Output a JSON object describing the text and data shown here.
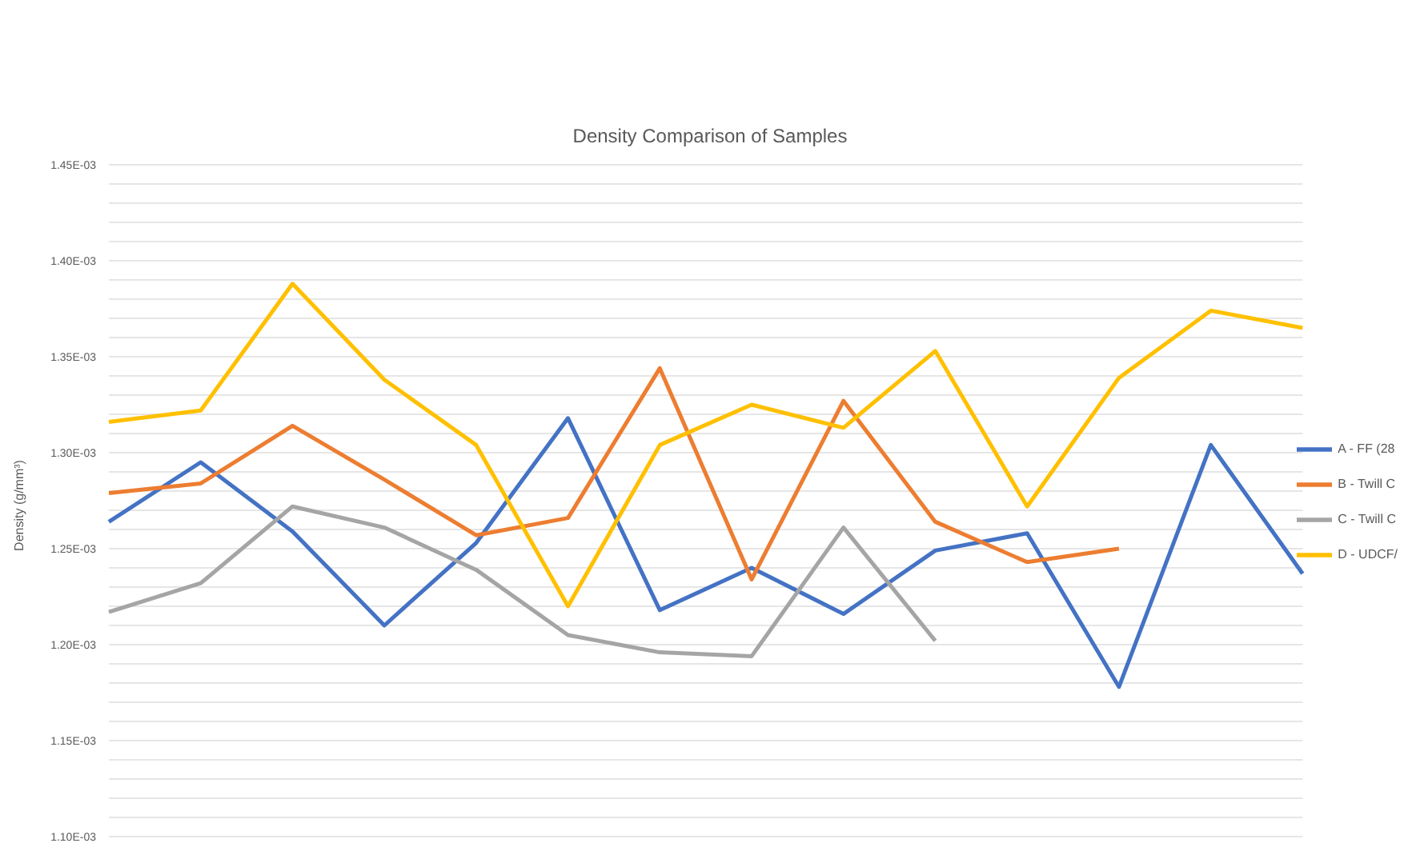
{
  "chart_data": {
    "type": "line",
    "title": "Density Comparison of Samples",
    "ylabel": "Density (g/mm³)",
    "categories": [
      null,
      null,
      null,
      null,
      null,
      null,
      null,
      null,
      null,
      null,
      null,
      null,
      null,
      null
    ],
    "series": [
      {
        "name": "A - FF (28",
        "color": "#4472c4",
        "values": [
          0.001264,
          0.001295,
          0.001259,
          0.00121,
          0.001253,
          0.001318,
          0.001218,
          0.00124,
          0.001216,
          0.001249,
          0.001258,
          0.001178,
          0.001304,
          0.001237
        ]
      },
      {
        "name": "B - Twill C",
        "color": "#ed7d31",
        "values": [
          0.001279,
          0.001284,
          0.001314,
          0.001286,
          0.001257,
          0.001266,
          0.001344,
          0.001234,
          0.001327,
          0.001264,
          0.001243,
          0.00125,
          null,
          null
        ]
      },
      {
        "name": "C - Twill C",
        "color": "#a5a5a5",
        "values": [
          0.001217,
          0.001232,
          0.001272,
          0.001261,
          0.001239,
          0.001205,
          0.001196,
          0.001194,
          0.001261,
          0.001202,
          null,
          null,
          null,
          null
        ]
      },
      {
        "name": "D - UDCF/",
        "color": "#ffc000",
        "values": [
          0.001316,
          0.001322,
          0.001388,
          0.001338,
          0.001304,
          0.00122,
          0.001304,
          0.001325,
          0.001313,
          0.001353,
          0.001272,
          0.001339,
          0.001374,
          0.001365
        ]
      }
    ],
    "ylim": [
      0.0011,
      0.00145
    ],
    "yticks": [
      {
        "value": 0.0011,
        "label": "1.10E-03"
      },
      {
        "value": 0.00111,
        "label": null
      },
      {
        "value": 0.00112,
        "label": null
      },
      {
        "value": 0.00113,
        "label": null
      },
      {
        "value": 0.00114,
        "label": null
      },
      {
        "value": 0.00115,
        "label": "1.15E-03"
      },
      {
        "value": 0.00116,
        "label": null
      },
      {
        "value": 0.00117,
        "label": null
      },
      {
        "value": 0.00118,
        "label": null
      },
      {
        "value": 0.00119,
        "label": null
      },
      {
        "value": 0.0012,
        "label": "1.20E-03"
      },
      {
        "value": 0.00121,
        "label": null
      },
      {
        "value": 0.00122,
        "label": null
      },
      {
        "value": 0.00123,
        "label": null
      },
      {
        "value": 0.00124,
        "label": null
      },
      {
        "value": 0.00125,
        "label": "1.25E-03"
      },
      {
        "value": 0.00126,
        "label": null
      },
      {
        "value": 0.00127,
        "label": null
      },
      {
        "value": 0.00128,
        "label": null
      },
      {
        "value": 0.00129,
        "label": null
      },
      {
        "value": 0.0013,
        "label": "1.30E-03"
      },
      {
        "value": 0.00131,
        "label": null
      },
      {
        "value": 0.00132,
        "label": null
      },
      {
        "value": 0.00133,
        "label": null
      },
      {
        "value": 0.00134,
        "label": null
      },
      {
        "value": 0.00135,
        "label": "1.35E-03"
      },
      {
        "value": 0.00136,
        "label": null
      },
      {
        "value": 0.00137,
        "label": null
      },
      {
        "value": 0.00138,
        "label": null
      },
      {
        "value": 0.00139,
        "label": null
      },
      {
        "value": 0.0014,
        "label": "1.40E-03"
      },
      {
        "value": 0.00141,
        "label": null
      },
      {
        "value": 0.00142,
        "label": null
      },
      {
        "value": 0.00143,
        "label": null
      },
      {
        "value": 0.00144,
        "label": null
      },
      {
        "value": 0.00145,
        "label": "1.45E-03"
      }
    ],
    "grid": "y",
    "legend": "right",
    "marker": "none",
    "line_style": "solid",
    "tick_labels": "y"
  }
}
